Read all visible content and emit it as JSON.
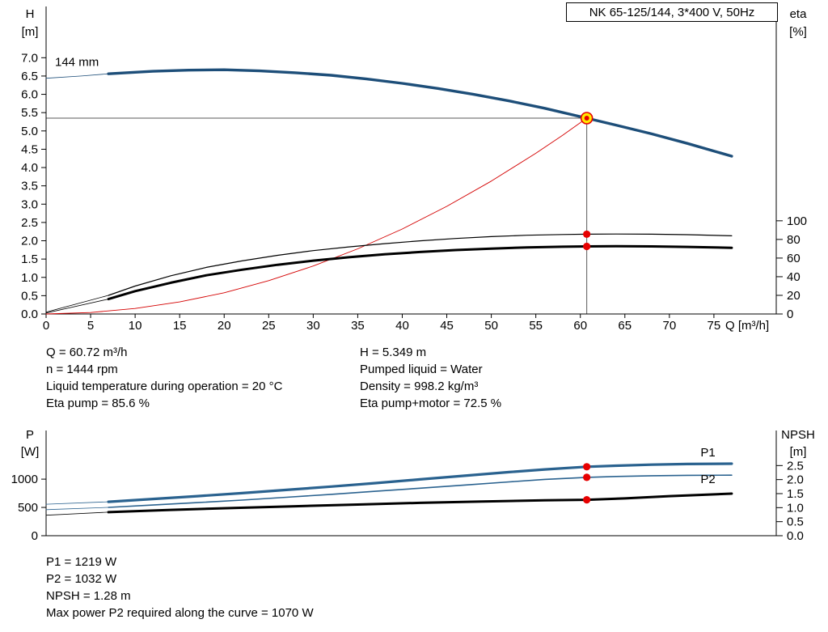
{
  "title_box": {
    "text": "NK 65-125/144, 3*400 V, 50Hz"
  },
  "info_left": [
    "Q = 60.72 m³/h",
    "n = 1444 rpm",
    "Liquid temperature during operation = 20 °C",
    "Eta pump = 85.6 %"
  ],
  "info_right": [
    "H = 5.349 m",
    "Pumped liquid = Water",
    "Density = 998.2 kg/m³",
    "Eta pump+motor = 72.5 %"
  ],
  "bottom_info": [
    "P1 = 1219 W",
    "P2 = 1032 W",
    "NPSH = 1.28 m",
    "Max power P2 required along the curve = 1070 W"
  ],
  "colors": {
    "head_curve": "#1d4e79",
    "power_curve": "#2a628f",
    "system_curve": "#d40000",
    "dot_red": "#e60000",
    "duty_marker_fill": "#ffe800",
    "crosshair": "#5a5a5a",
    "axis": "#000000"
  },
  "chart_data": [
    {
      "id": "qh-eta",
      "type": "line",
      "title": "NK 65-125/144, 3*400 V, 50Hz",
      "impeller_label": "144 mm",
      "x": {
        "label": "Q [m³/h]",
        "ticks": [
          0,
          5,
          10,
          15,
          20,
          25,
          30,
          35,
          40,
          45,
          50,
          55,
          60,
          65,
          70,
          75
        ],
        "xlim": [
          0,
          82
        ]
      },
      "left_axis": {
        "name": "H",
        "unit": "[m]",
        "ylim": [
          0,
          7
        ],
        "ticks": [
          "0.0",
          "0.5",
          "1.0",
          "1.5",
          "2.0",
          "2.5",
          "3.0",
          "3.5",
          "4.0",
          "4.5",
          "5.0",
          "5.5",
          "6.0",
          "6.5",
          "7.0"
        ]
      },
      "right_axis": {
        "name": "eta",
        "unit": "[%]",
        "ylim": [
          0,
          100
        ],
        "ticks": [
          "0",
          "20",
          "40",
          "60",
          "80",
          "100"
        ]
      },
      "series": [
        {
          "name": "head-curve-144mm",
          "axis": "H",
          "color": "#1d4e79",
          "width": 3.4,
          "lead": [
            [
              0,
              6.44
            ],
            [
              4,
              6.5
            ],
            [
              7,
              6.56
            ]
          ],
          "points": [
            [
              7,
              6.56
            ],
            [
              12,
              6.63
            ],
            [
              16,
              6.66
            ],
            [
              20,
              6.67
            ],
            [
              24,
              6.64
            ],
            [
              28,
              6.59
            ],
            [
              32,
              6.52
            ],
            [
              36,
              6.42
            ],
            [
              40,
              6.3
            ],
            [
              44,
              6.16
            ],
            [
              48,
              6.0
            ],
            [
              52,
              5.82
            ],
            [
              56,
              5.62
            ],
            [
              60.72,
              5.349
            ],
            [
              64,
              5.16
            ],
            [
              68,
              4.92
            ],
            [
              72,
              4.66
            ],
            [
              77,
              4.31
            ]
          ]
        },
        {
          "name": "system-curve",
          "axis": "H",
          "color": "#d40000",
          "width": 0.9,
          "points": [
            [
              0,
              0
            ],
            [
              5,
              0.04
            ],
            [
              10,
              0.15
            ],
            [
              15,
              0.33
            ],
            [
              20,
              0.58
            ],
            [
              25,
              0.91
            ],
            [
              30,
              1.31
            ],
            [
              35,
              1.78
            ],
            [
              40,
              2.32
            ],
            [
              45,
              2.94
            ],
            [
              50,
              3.63
            ],
            [
              55,
              4.39
            ],
            [
              58,
              4.88
            ],
            [
              60.72,
              5.349
            ]
          ]
        },
        {
          "name": "eta-pump-curve",
          "axis": "eta",
          "color": "#000000",
          "width": 1.2,
          "lead": [
            [
              0,
              2
            ],
            [
              7,
              20
            ]
          ],
          "points": [
            [
              7,
              20
            ],
            [
              10,
              30
            ],
            [
              14,
              41
            ],
            [
              18,
              50
            ],
            [
              22,
              57
            ],
            [
              26,
              63
            ],
            [
              30,
              68
            ],
            [
              34,
              72
            ],
            [
              38,
              75.5
            ],
            [
              42,
              78.5
            ],
            [
              46,
              81
            ],
            [
              50,
              83
            ],
            [
              54,
              84.5
            ],
            [
              58,
              85.3
            ],
            [
              60.72,
              85.6
            ],
            [
              64,
              85.8
            ],
            [
              68,
              85.6
            ],
            [
              72,
              85.1
            ],
            [
              77,
              83.9
            ]
          ]
        },
        {
          "name": "eta-pump-motor-curve",
          "axis": "eta",
          "color": "#000000",
          "width": 3,
          "lead": [
            [
              0,
              1
            ],
            [
              7,
              16
            ]
          ],
          "points": [
            [
              7,
              16
            ],
            [
              10,
              24.5
            ],
            [
              14,
              33.5
            ],
            [
              18,
              41.5
            ],
            [
              22,
              47.5
            ],
            [
              26,
              52.8
            ],
            [
              30,
              57.2
            ],
            [
              34,
              60.9
            ],
            [
              38,
              64
            ],
            [
              42,
              66.5
            ],
            [
              46,
              68.6
            ],
            [
              50,
              70.2
            ],
            [
              54,
              71.5
            ],
            [
              58,
              72.2
            ],
            [
              60.72,
              72.5
            ],
            [
              64,
              72.7
            ],
            [
              68,
              72.5
            ],
            [
              72,
              72
            ],
            [
              77,
              71
            ]
          ]
        }
      ],
      "duty_point": {
        "q": 60.72,
        "h": 5.349,
        "eta_pump": 85.6,
        "eta_pump_motor": 72.5
      }
    },
    {
      "id": "power-npsh",
      "type": "line",
      "x": {
        "xlim": [
          0,
          82
        ]
      },
      "left_axis": {
        "name": "P",
        "unit": "[W]",
        "ylim": [
          0,
          1000
        ],
        "ticks": [
          "0",
          "500",
          "1000"
        ]
      },
      "right_axis": {
        "name": "NPSH",
        "unit": "[m]",
        "ylim": [
          0,
          2.5
        ],
        "ticks": [
          "0.0",
          "0.5",
          "1.0",
          "1.5",
          "2.0",
          "2.5"
        ]
      },
      "series": [
        {
          "name": "p1-curve",
          "axis": "P",
          "color": "#2a628f",
          "width": 3.2,
          "lead": [
            [
              0,
              557
            ],
            [
              7,
              600
            ]
          ],
          "points": [
            [
              7,
              600
            ],
            [
              12,
              650
            ],
            [
              17,
              700
            ],
            [
              22,
              753
            ],
            [
              27,
              810
            ],
            [
              32,
              868
            ],
            [
              37,
              930
            ],
            [
              42,
              995
            ],
            [
              47,
              1060
            ],
            [
              52,
              1125
            ],
            [
              56,
              1172
            ],
            [
              60.72,
              1219
            ],
            [
              64,
              1238
            ],
            [
              68,
              1256
            ],
            [
              72,
              1267
            ],
            [
              77,
              1273
            ]
          ],
          "label": "P1",
          "label_pos": [
            73.5,
            1400
          ]
        },
        {
          "name": "p2-curve",
          "axis": "P",
          "color": "#2a628f",
          "width": 1.6,
          "lead": [
            [
              0,
              460
            ],
            [
              7,
              500
            ]
          ],
          "points": [
            [
              7,
              500
            ],
            [
              12,
              542
            ],
            [
              17,
              585
            ],
            [
              22,
              630
            ],
            [
              27,
              680
            ],
            [
              32,
              731
            ],
            [
              37,
              785
            ],
            [
              42,
              840
            ],
            [
              47,
              896
            ],
            [
              52,
              952
            ],
            [
              56,
              995
            ],
            [
              60.72,
              1032
            ],
            [
              64,
              1047
            ],
            [
              68,
              1060
            ],
            [
              72,
              1067
            ],
            [
              77,
              1070
            ]
          ],
          "label": "P2",
          "label_pos": [
            73.5,
            930
          ]
        },
        {
          "name": "npsh-curve",
          "axis": "NPSH",
          "color": "#000000",
          "width": 3,
          "lead": [
            [
              0,
              0.73
            ],
            [
              7,
              0.84
            ]
          ],
          "points": [
            [
              7,
              0.84
            ],
            [
              14,
              0.92
            ],
            [
              21,
              0.99
            ],
            [
              28,
              1.05
            ],
            [
              35,
              1.11
            ],
            [
              42,
              1.17
            ],
            [
              49,
              1.22
            ],
            [
              56,
              1.26
            ],
            [
              60.72,
              1.28
            ],
            [
              65,
              1.33
            ],
            [
              70,
              1.41
            ],
            [
              77,
              1.5
            ]
          ]
        }
      ],
      "duty_point": {
        "q": 60.72,
        "p1": 1219,
        "p2": 1032,
        "npsh": 1.28
      }
    }
  ]
}
